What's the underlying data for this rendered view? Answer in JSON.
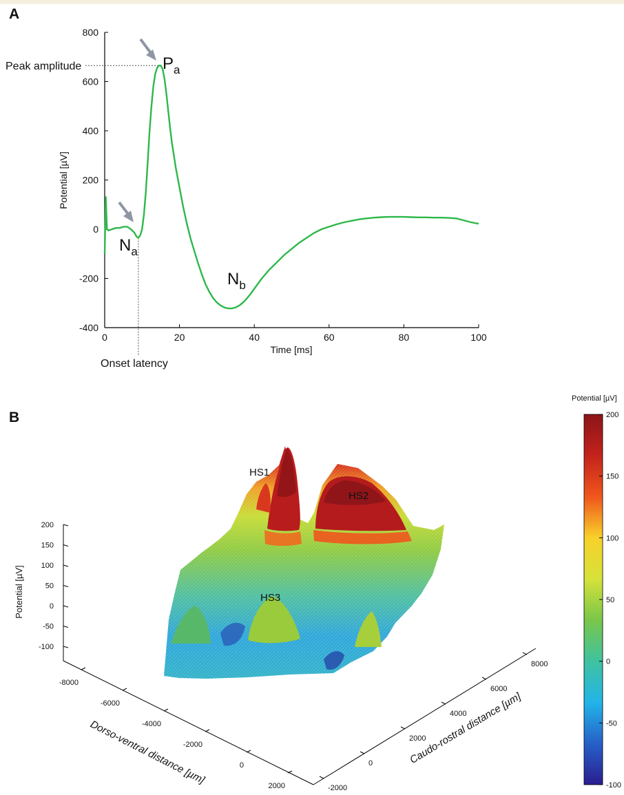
{
  "panels": {
    "a_letter": "A",
    "b_letter": "B"
  },
  "colors": {
    "trace": "#2db84a",
    "arrow": "#8f96a3",
    "axis": "#000000",
    "guide": "#555555"
  },
  "chart_data": [
    {
      "type": "line",
      "xlabel": "Time [ms]",
      "ylabel": "Potential [µV]",
      "xlim": [
        0,
        100
      ],
      "ylim": [
        -400,
        800
      ],
      "x_ticks": [
        "0",
        "20",
        "40",
        "60",
        "80",
        "100"
      ],
      "y_ticks": [
        "800",
        "600",
        "400",
        "200",
        "0",
        "-200",
        "-400"
      ],
      "grid": false,
      "series": [
        {
          "x": [
            0,
            0.3,
            0.6,
            1,
            2,
            3,
            4,
            5,
            6,
            7,
            8,
            8.5,
            9,
            9.5,
            10,
            10.5,
            11,
            11.5,
            12,
            12.5,
            13,
            13.5,
            14,
            14.5,
            15,
            15.5,
            16,
            16.5,
            17,
            17.5,
            18,
            19,
            20,
            21,
            22,
            23,
            24,
            25,
            26,
            27,
            28,
            29,
            30,
            31,
            32,
            33,
            34,
            35,
            36,
            37,
            38,
            39,
            40,
            42,
            44,
            46,
            48,
            50,
            52,
            54,
            56,
            58,
            60,
            62,
            64,
            66,
            68,
            70,
            72,
            74,
            76,
            78,
            80,
            82,
            84,
            86,
            88,
            90,
            92,
            94,
            96,
            98,
            100
          ],
          "values": [
            -100,
            130,
            0,
            -5,
            0,
            5,
            5,
            10,
            10,
            0,
            -15,
            -30,
            -35,
            -25,
            0,
            60,
            150,
            270,
            400,
            500,
            580,
            630,
            655,
            665,
            665,
            650,
            610,
            550,
            480,
            410,
            350,
            250,
            170,
            90,
            20,
            -40,
            -90,
            -140,
            -185,
            -225,
            -255,
            -280,
            -298,
            -310,
            -318,
            -322,
            -322,
            -318,
            -310,
            -298,
            -282,
            -263,
            -242,
            -200,
            -165,
            -135,
            -105,
            -80,
            -55,
            -35,
            -15,
            0,
            10,
            20,
            28,
            34,
            40,
            44,
            47,
            49,
            50,
            50,
            50,
            49,
            48,
            48,
            47,
            47,
            46,
            44,
            36,
            28,
            22
          ]
        }
      ],
      "annotations": [
        {
          "label": "P",
          "sub": "a"
        },
        {
          "label": "N",
          "sub": "a"
        },
        {
          "label": "N",
          "sub": "b"
        },
        {
          "label": "Peak amplitude"
        },
        {
          "label": "Onset latency"
        }
      ],
      "markers": {
        "peak": {
          "x": 15,
          "y": 665
        },
        "onset": {
          "x": 9,
          "y": -35
        },
        "nb": {
          "x": 34,
          "y": -322
        }
      }
    },
    {
      "type": "surface3d",
      "xlabel": "Dorso-ventral distance [µm]",
      "ylabel": "Caudo-rostral distance [µm]",
      "zlabel": "Potential [µV]",
      "x_ticks": [
        "-8000",
        "-6000",
        "-4000",
        "-2000",
        "0",
        "2000"
      ],
      "y_ticks": [
        "-2000",
        "0",
        "2000",
        "4000",
        "6000",
        "8000"
      ],
      "z_ticks": [
        "200",
        "150",
        "100",
        "50",
        "0",
        "-50",
        "-100"
      ],
      "hotspots": [
        "HS1",
        "HS2",
        "HS3"
      ],
      "colorbar": {
        "title": "Potential [µV]",
        "ticks": [
          "200",
          "150",
          "100",
          "50",
          "0",
          "-50",
          "-100"
        ],
        "range": [
          -100,
          200
        ],
        "colors": [
          "#2b1d8f",
          "#2660c8",
          "#22b4e8",
          "#3fc2a0",
          "#79c64a",
          "#d6e23a",
          "#f7d12a",
          "#f0561d",
          "#c3231b",
          "#8b1519"
        ]
      }
    }
  ]
}
